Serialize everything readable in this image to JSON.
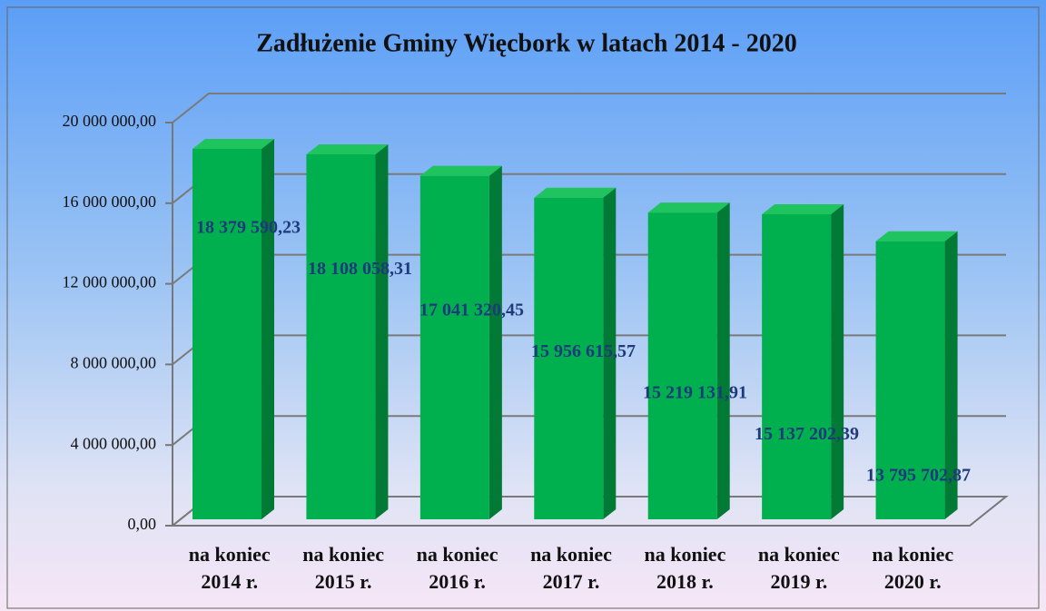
{
  "chart_data": {
    "type": "bar3d",
    "title": "Zadłużenie Gminy Więcbork w latach 2014 - 2020",
    "categories": [
      "na koniec 2014 r.",
      "na koniec 2015 r.",
      "na koniec 2016 r.",
      "na koniec 2017 r.",
      "na koniec 2018 r.",
      "na koniec 2019 r.",
      "na koniec 2020 r."
    ],
    "values": [
      18379590.23,
      18108058.31,
      17041320.45,
      15956615.57,
      15219131.91,
      15137202.39,
      13795702.87
    ],
    "value_labels": [
      "18 379 590,23",
      "18 108 058,31",
      "17 041 320,45",
      "15 956 615,57",
      "15 219 131,91",
      "15 137 202,39",
      "13 795 702,87"
    ],
    "color": "#00b04f",
    "ylim": [
      0,
      20000000
    ],
    "yticks": [
      {
        "value": 0,
        "label": "0,00"
      },
      {
        "value": 4000000,
        "label": "4 000 000,00"
      },
      {
        "value": 8000000,
        "label": "8 000 000,00"
      },
      {
        "value": 12000000,
        "label": "12 000 000,00"
      },
      {
        "value": 16000000,
        "label": "16 000 000,00"
      },
      {
        "value": 20000000,
        "label": "20 000 000,00"
      }
    ],
    "grid": true
  }
}
